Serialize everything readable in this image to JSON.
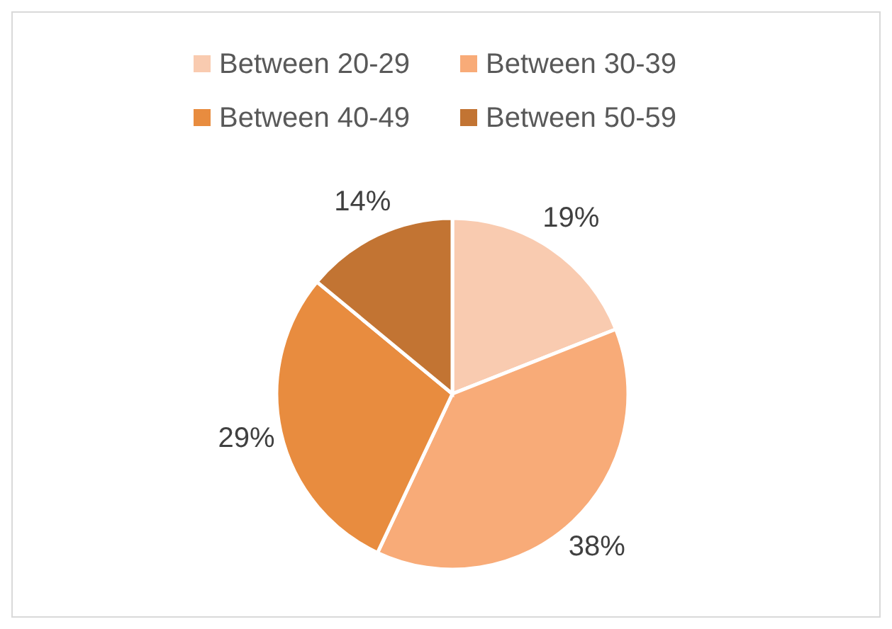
{
  "chart_data": {
    "type": "pie",
    "categories": [
      "Between 20-29",
      "Between 30-39",
      "Between 40-49",
      "Between 50-59"
    ],
    "values": [
      19,
      38,
      29,
      14
    ],
    "colors": [
      "#f9cbb0",
      "#f8ab78",
      "#e88c3f",
      "#c27433"
    ],
    "value_labels": [
      "19%",
      "38%",
      "29%",
      "14%"
    ],
    "legend": "top"
  }
}
